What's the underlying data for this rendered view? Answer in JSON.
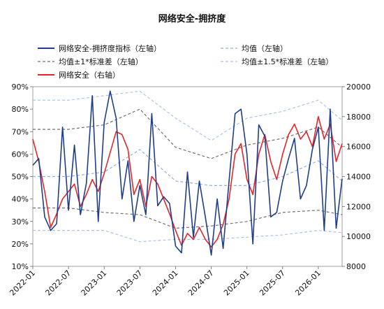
{
  "chart_data": {
    "type": "line",
    "title": "网络安全-拥挤度",
    "legend": [
      {
        "label": "网络安全-拥挤度指标（左轴）",
        "style": "solid",
        "color": "#1f3d8c",
        "axis": "left"
      },
      {
        "label": "均值（左轴）",
        "style": "dashed",
        "color": "#8fb0dd",
        "axis": "left"
      },
      {
        "label": "均值±1*标准差（左轴）",
        "style": "dashed",
        "color": "#707070",
        "axis": "left"
      },
      {
        "label": "均值±1.5*标准差（左轴）",
        "style": "dashed",
        "color": "#a9c3ea",
        "axis": "left"
      },
      {
        "label": "网络安全（右轴）",
        "style": "solid",
        "color": "#e8232a",
        "axis": "right"
      }
    ],
    "left_axis": {
      "min": 10,
      "max": 90,
      "step": 10,
      "unit": "%",
      "ticks": [
        "90%",
        "80%",
        "70%",
        "60%",
        "50%",
        "40%",
        "30%",
        "20%",
        "10%"
      ]
    },
    "right_axis": {
      "min": 8000,
      "max": 20000,
      "step": 2000,
      "ticks": [
        "20000",
        "18000",
        "16000",
        "14000",
        "12000",
        "10000",
        "8000"
      ]
    },
    "x_axis": {
      "ticks": [
        "2022-01",
        "2022-07",
        "2023-01",
        "2023-07",
        "2024-01",
        "2024-07",
        "2025-01",
        "2025-07",
        "2026-01"
      ],
      "range": [
        "2022-01",
        "2026-05"
      ]
    },
    "series": [
      {
        "name": "网络安全-拥挤度指标（左轴）",
        "axis": "left",
        "dates": [
          "2022-01",
          "2022-02",
          "2022-03",
          "2022-04",
          "2022-05",
          "2022-06",
          "2022-07",
          "2022-08",
          "2022-09",
          "2022-10",
          "2022-11",
          "2022-12",
          "2023-01",
          "2023-02",
          "2023-03",
          "2023-04",
          "2023-05",
          "2023-06",
          "2023-07",
          "2023-08",
          "2023-09",
          "2023-10",
          "2023-11",
          "2023-12",
          "2024-01",
          "2024-02",
          "2024-03",
          "2024-04",
          "2024-05",
          "2024-06",
          "2024-07",
          "2024-08",
          "2024-09",
          "2024-10",
          "2024-11",
          "2024-12",
          "2025-01",
          "2025-02",
          "2025-03",
          "2025-04",
          "2025-05",
          "2025-06",
          "2025-07",
          "2025-08",
          "2025-09",
          "2025-10",
          "2025-11",
          "2025-12",
          "2026-01",
          "2026-02",
          "2026-03",
          "2026-04",
          "2026-05"
        ],
        "values": [
          55,
          58,
          32,
          26,
          29,
          72,
          35,
          64,
          33,
          47,
          86,
          30,
          74,
          88,
          76,
          40,
          57,
          30,
          46,
          33,
          78,
          37,
          41,
          38,
          19,
          16,
          52,
          23,
          48,
          32,
          15,
          40,
          18,
          48,
          78,
          80,
          60,
          20,
          73,
          68,
          32,
          34,
          48,
          58,
          67,
          40,
          46,
          62,
          72,
          26,
          80,
          27,
          49
        ]
      },
      {
        "name": "均值（左轴）",
        "axis": "left",
        "dates": [
          "2022-01",
          "2022-07",
          "2023-01",
          "2023-07",
          "2024-01",
          "2024-07",
          "2025-01",
          "2025-07",
          "2026-01",
          "2026-05"
        ],
        "values": [
          50,
          50,
          52,
          62,
          48,
          46,
          46,
          50,
          57,
          48
        ]
      },
      {
        "name": "均值+1*标准差（左轴）",
        "axis": "left",
        "dates": [
          "2022-01",
          "2022-07",
          "2023-01",
          "2023-07",
          "2024-01",
          "2024-07",
          "2025-01",
          "2025-07",
          "2026-01",
          "2026-05"
        ],
        "values": [
          71,
          71,
          73,
          80,
          63,
          58,
          64,
          67,
          72,
          63
        ]
      },
      {
        "name": "均值-1*标准差（左轴）",
        "axis": "left",
        "dates": [
          "2022-01",
          "2022-07",
          "2023-01",
          "2023-07",
          "2024-01",
          "2024-07",
          "2025-01",
          "2025-07",
          "2026-01",
          "2026-05"
        ],
        "values": [
          36,
          36,
          34,
          33,
          27,
          28,
          30,
          34,
          35,
          33
        ]
      },
      {
        "name": "均值+1.5*标准差（左轴）",
        "axis": "left",
        "dates": [
          "2022-01",
          "2022-07",
          "2023-01",
          "2023-07",
          "2024-01",
          "2024-07",
          "2025-01",
          "2025-07",
          "2026-01",
          "2026-05"
        ],
        "values": [
          84,
          84,
          86,
          88,
          76,
          66,
          76,
          79,
          84,
          75
        ]
      },
      {
        "name": "均值-1.5*标准差（左轴）",
        "axis": "left",
        "dates": [
          "2022-01",
          "2022-07",
          "2023-01",
          "2023-07",
          "2024-01",
          "2024-07",
          "2025-01",
          "2025-07",
          "2026-01",
          "2026-05"
        ],
        "values": [
          26,
          26,
          26,
          21,
          22,
          22,
          23,
          24,
          26,
          25
        ]
      },
      {
        "name": "网络安全（右轴）",
        "axis": "right",
        "dates": [
          "2022-01",
          "2022-02",
          "2022-03",
          "2022-04",
          "2022-05",
          "2022-06",
          "2022-07",
          "2022-08",
          "2022-09",
          "2022-10",
          "2022-11",
          "2022-12",
          "2023-01",
          "2023-02",
          "2023-03",
          "2023-04",
          "2023-05",
          "2023-06",
          "2023-07",
          "2023-08",
          "2023-09",
          "2023-10",
          "2023-11",
          "2023-12",
          "2024-01",
          "2024-02",
          "2024-03",
          "2024-04",
          "2024-05",
          "2024-06",
          "2024-07",
          "2024-08",
          "2024-09",
          "2024-10",
          "2024-11",
          "2024-12",
          "2025-01",
          "2025-02",
          "2025-03",
          "2025-04",
          "2025-05",
          "2025-06",
          "2025-07",
          "2025-08",
          "2025-09",
          "2025-10",
          "2025-11",
          "2025-12",
          "2026-01",
          "2026-02",
          "2026-03",
          "2026-04",
          "2026-05"
        ],
        "values": [
          16500,
          15000,
          13000,
          10600,
          11500,
          12500,
          13000,
          13500,
          12000,
          12800,
          13800,
          13000,
          14200,
          15600,
          17000,
          16800,
          15800,
          12800,
          13800,
          12000,
          14000,
          13500,
          12500,
          11500,
          10400,
          9400,
          10200,
          9800,
          10600,
          9800,
          9300,
          9800,
          10800,
          12500,
          15500,
          16200,
          13800,
          12800,
          15500,
          16800,
          15000,
          13800,
          15500,
          16800,
          17500,
          16500,
          17000,
          16000,
          18000,
          16500,
          17500,
          15000,
          16200
        ]
      }
    ]
  }
}
